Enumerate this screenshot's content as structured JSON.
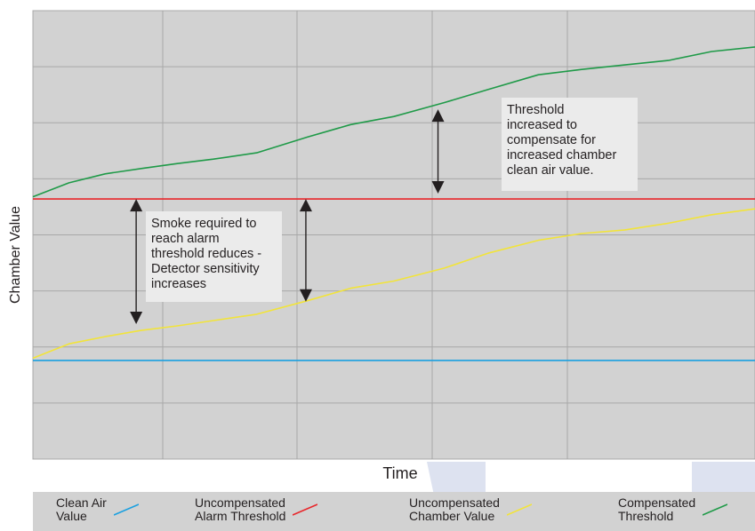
{
  "chart_data": {
    "type": "line",
    "title": "",
    "xlabel": "Time",
    "ylabel": "Chamber Value",
    "grid": true,
    "xlim": [
      0,
      100
    ],
    "ylim": [
      0,
      100
    ],
    "x_ticks_shown": false,
    "y_ticks_shown": false,
    "legend_placement": "bottom",
    "series": [
      {
        "name": "Clean Air Value",
        "color": "#1aa0e0",
        "x": [
          0,
          100
        ],
        "y": [
          22,
          22
        ]
      },
      {
        "name": "Uncompensated Alarm Threshold",
        "color": "#e8262a",
        "x": [
          0,
          100
        ],
        "y": [
          58,
          58
        ]
      },
      {
        "name": "Uncompensated Chamber Value",
        "color": "#f2e43a",
        "x": [
          0,
          5,
          10,
          15,
          20,
          25,
          31,
          38,
          44,
          50,
          57,
          63,
          70,
          76,
          82,
          88,
          94,
          100
        ],
        "y": [
          22.5,
          25.7,
          27.3,
          28.7,
          29.7,
          30.9,
          32.3,
          35.3,
          38.1,
          39.7,
          42.6,
          45.9,
          48.8,
          50.3,
          51.1,
          52.6,
          54.5,
          55.8
        ]
      },
      {
        "name": "Compensated Threshold",
        "color": "#1f9a48",
        "x": [
          0,
          5,
          10,
          15,
          20,
          25,
          31,
          38,
          44,
          50,
          57,
          63,
          70,
          76,
          82,
          88,
          94,
          100
        ],
        "y": [
          58.5,
          61.6,
          63.6,
          64.8,
          65.9,
          66.9,
          68.3,
          71.8,
          74.6,
          76.4,
          79.5,
          82.4,
          85.7,
          86.9,
          87.9,
          88.9,
          90.9,
          91.9
        ]
      }
    ],
    "annotations": {
      "left_note": "Smoke required to\nreach alarm\nthreshold reduces -\nDetector sensitivity\nincreases",
      "right_note": "Threshold\nincreased to\ncompensate for\nincreased chamber\nclean air value."
    },
    "arrows": [
      {
        "x": 14.3,
        "y_from": 58,
        "y_to": 30.1
      },
      {
        "x": 37.8,
        "y_from": 58,
        "y_to": 35.1
      },
      {
        "x": 56.1,
        "y_from": 78.0,
        "y_to": 59.2
      }
    ]
  },
  "legend": {
    "items": [
      {
        "label": "Clean Air\nValue",
        "color": "#1aa0e0"
      },
      {
        "label": "Uncompensated\nAlarm Threshold",
        "color": "#e8262a"
      },
      {
        "label": "Uncompensated\nChamber Value",
        "color": "#f2e43a"
      },
      {
        "label": "Compensated\nThreshold",
        "color": "#1f9a48"
      }
    ]
  }
}
